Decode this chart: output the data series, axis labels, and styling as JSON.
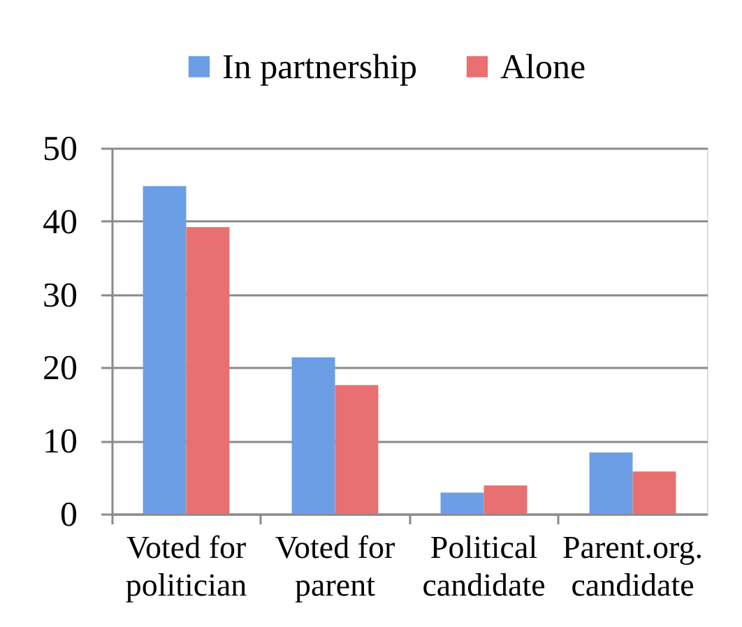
{
  "chart_data": {
    "type": "bar",
    "categories": [
      "Voted for politician",
      "Voted for parent",
      "Political candidate",
      "Parent.org. candidate"
    ],
    "series": [
      {
        "name": "In partnership",
        "color": "#6c9ee6",
        "values": [
          44.8,
          21.4,
          2.9,
          8.4
        ]
      },
      {
        "name": "Alone",
        "color": "#e87070",
        "values": [
          39.2,
          17.6,
          3.9,
          5.8
        ]
      }
    ],
    "ylim": [
      0,
      50
    ],
    "yticks": [
      0,
      10,
      20,
      30,
      40,
      50
    ],
    "grid": "y",
    "legend": "top"
  }
}
